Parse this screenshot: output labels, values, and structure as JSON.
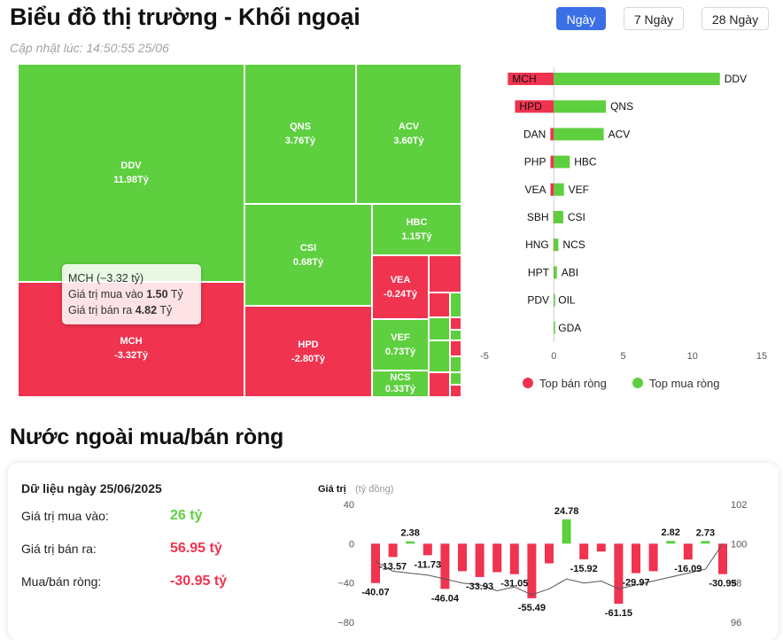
{
  "header": {
    "title": "Biểu đồ thị trường - Khối ngoại",
    "updated": "Cập nhật lúc: 14:50:55 25/06",
    "tabs": [
      "Ngày",
      "7 Ngày",
      "28 Ngày"
    ],
    "active_tab": "Ngày"
  },
  "tooltip": {
    "title": "MCH (−3.32 tỷ)",
    "buy_label": "Giá trị mua vào ",
    "buy_value": "1.50",
    "buy_unit": " Tỷ",
    "sell_label": "Giá trị bán ra ",
    "sell_value": "4.82",
    "sell_unit": " Tỷ"
  },
  "section2": {
    "title": "Nước ngoài mua/bán ròng"
  },
  "summary": {
    "date_label": "Dữ liệu ngày 25/06/2025",
    "buy_label": "Giá trị mua vào:",
    "buy_value": "26 tỷ",
    "sell_label": "Giá trị bán ra:",
    "sell_value": "56.95 tỷ",
    "net_label": "Mua/bán ròng:",
    "net_value": "-30.95 tỷ"
  },
  "colors": {
    "green": "#5ecf3f",
    "red": "#f0334f",
    "blue": "#3b6fe6"
  },
  "chart_data": [
    {
      "type": "treemap",
      "unit": "Tỷ",
      "cells": [
        {
          "name": "DDV",
          "value": 11.98,
          "label": "11.98Tỷ",
          "side": "buy"
        },
        {
          "name": "MCH",
          "value": -3.32,
          "label": "-3.32Tỷ",
          "side": "sell"
        },
        {
          "name": "QNS",
          "value": 3.76,
          "label": "3.76Tỷ",
          "side": "buy"
        },
        {
          "name": "ACV",
          "value": 3.6,
          "label": "3.60Tỷ",
          "side": "buy"
        },
        {
          "name": "CSI",
          "value": 0.68,
          "label": "0.68Tỷ",
          "side": "buy"
        },
        {
          "name": "HBC",
          "value": 1.15,
          "label": "1.15Tỷ",
          "side": "buy"
        },
        {
          "name": "HPD",
          "value": -2.8,
          "label": "-2.80Tỷ",
          "side": "sell"
        },
        {
          "name": "VEA",
          "value": -0.24,
          "label": "-0.24Tỷ",
          "side": "sell"
        },
        {
          "name": "VEF",
          "value": 0.73,
          "label": "0.73Tỷ",
          "side": "buy"
        },
        {
          "name": "NCS",
          "value": 0.33,
          "label": "0.33Tỷ",
          "side": "buy"
        }
      ]
    },
    {
      "type": "bar",
      "orientation": "horizontal",
      "xlim": [
        -5,
        15
      ],
      "xticks": [
        -5,
        0,
        5,
        10,
        15
      ],
      "legend": [
        "Top bán ròng",
        "Top mua ròng"
      ],
      "legend_position": "bottom",
      "rows": [
        {
          "sell": "MCH",
          "sell_value": -3.32,
          "buy": "DDV",
          "buy_value": 11.98
        },
        {
          "sell": "HPD",
          "sell_value": -2.8,
          "buy": "QNS",
          "buy_value": 3.76
        },
        {
          "sell": "DAN",
          "sell_value": -0.25,
          "buy": "ACV",
          "buy_value": 3.6
        },
        {
          "sell": "PHP",
          "sell_value": -0.24,
          "buy": "HBC",
          "buy_value": 1.15
        },
        {
          "sell": "VEA",
          "sell_value": -0.24,
          "buy": "VEF",
          "buy_value": 0.73
        },
        {
          "sell": "SBH",
          "sell_value": -0.04,
          "buy": "CSI",
          "buy_value": 0.68
        },
        {
          "sell": "HNG",
          "sell_value": -0.03,
          "buy": "NCS",
          "buy_value": 0.33
        },
        {
          "sell": "HPT",
          "sell_value": -0.02,
          "buy": "ABI",
          "buy_value": 0.22
        },
        {
          "sell": "PDV",
          "sell_value": -0.01,
          "buy": "OIL",
          "buy_value": 0.02
        },
        {
          "sell": "",
          "sell_value": 0,
          "buy": "GDA",
          "buy_value": 0.01
        }
      ]
    },
    {
      "type": "bar",
      "title": "Giá trị",
      "unit_label": "(tỷ đồng)",
      "ylim": [
        -80,
        40
      ],
      "yticks": [
        40,
        0,
        -40,
        -80
      ],
      "ytick_labels": [
        "40",
        "0",
        "−40",
        "−80"
      ],
      "y2lim": [
        96,
        102
      ],
      "y2ticks": [
        102,
        100,
        98,
        96
      ],
      "values": [
        -40.07,
        -13.57,
        2.38,
        -11.73,
        -46.04,
        -28,
        -33.93,
        -29,
        -31.05,
        -55.49,
        -20,
        24.78,
        -15.92,
        -8,
        -61.15,
        -29.97,
        -28,
        2.82,
        -16.09,
        2.73,
        -30.95
      ],
      "labels": [
        "-40.07",
        "-13.57",
        "2.38",
        "-11.73",
        "-46.04",
        "",
        "-33.93",
        "",
        "-31.05",
        "-55.49",
        "",
        "24.78",
        "-15.92",
        "",
        "-61.15",
        "-29.97",
        "",
        "2.82",
        "-16.09",
        "2.73",
        "-30.95"
      ],
      "line_series": [
        99.1,
        98.6,
        98.5,
        98.4,
        98.2,
        98.0,
        97.9,
        97.6,
        97.8,
        97.4,
        97.7,
        98.2,
        98.0,
        98.1,
        97.7,
        97.9,
        98.1,
        98.3,
        98.5,
        98.7,
        100.0
      ]
    }
  ]
}
